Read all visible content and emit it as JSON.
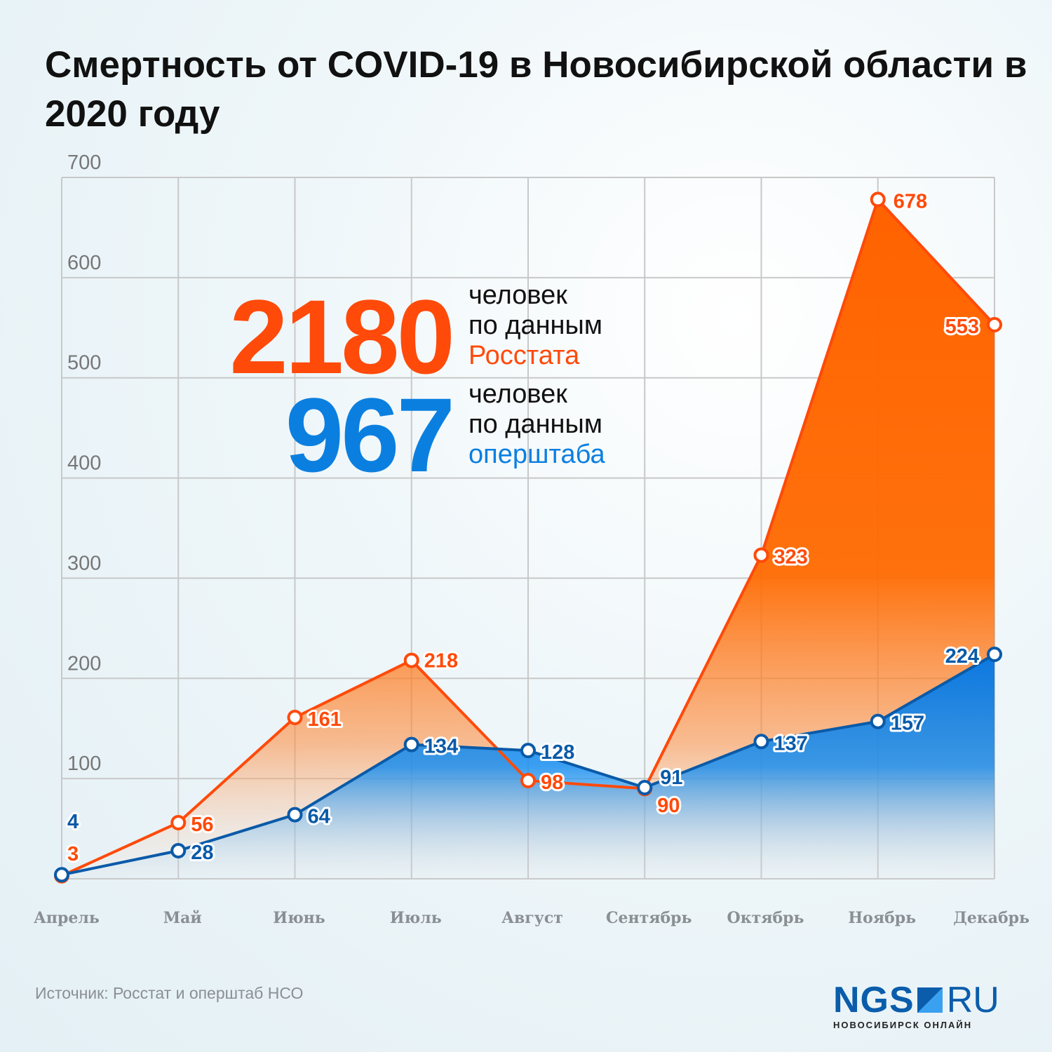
{
  "title": "Смертность от COVID-19 в Новосибирской области в 2020 году",
  "summary": {
    "rosstat_total": "2180",
    "rosstat_line1": "человек",
    "rosstat_line2": "по данным",
    "rosstat_line3": "Росстата",
    "shtab_total": "967",
    "shtab_line1": "человек",
    "shtab_line2": "по данным",
    "shtab_line3": "оперштаба"
  },
  "source": "Источник: Росстат и оперштаб НСО",
  "logo": {
    "main": "NGS",
    "suffix": "RU",
    "subtitle": "НОВОСИБИРСК ОНЛАЙН"
  },
  "colors": {
    "rosstat": "#ff4a0a",
    "rosstat_fill": "#ff6a00",
    "shtab": "#0a5aa8",
    "shtab_fill": "#1a8ff0",
    "grid": "#c8c8c8"
  },
  "chart_data": {
    "type": "area",
    "categories": [
      "Апрель",
      "Май",
      "Июнь",
      "Июль",
      "Август",
      "Сентябрь",
      "Октябрь",
      "Ноябрь",
      "Декабрь"
    ],
    "ylim": [
      0,
      700
    ],
    "yticks": [
      100,
      200,
      300,
      400,
      500,
      600,
      700
    ],
    "grid": true,
    "series": [
      {
        "key": "rosstat",
        "values": [
          3,
          56,
          161,
          218,
          98,
          90,
          323,
          678,
          553
        ]
      },
      {
        "key": "shtab",
        "values": [
          4,
          28,
          64,
          134,
          128,
          91,
          137,
          157,
          224
        ]
      }
    ]
  }
}
